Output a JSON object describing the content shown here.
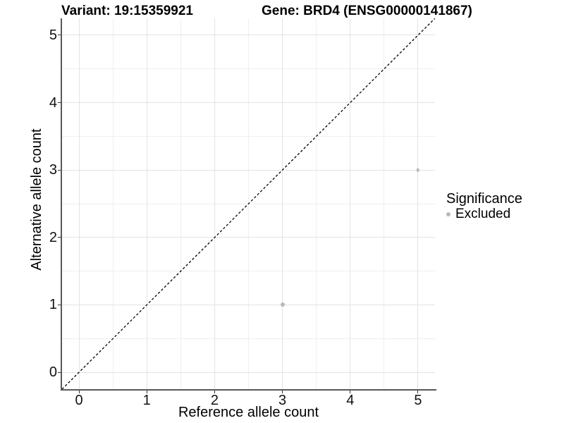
{
  "header": {
    "variant_title": "Variant: 19:15359921",
    "gene_title": "Gene: BRD4 (ENSG00000141867)"
  },
  "axes": {
    "x_label": "Reference allele count",
    "y_label": "Alternative allele count"
  },
  "legend": {
    "title": "Significance",
    "items": [
      {
        "label": "Excluded",
        "color": "#b9b9b9"
      }
    ]
  },
  "colors": {
    "axis_line": "#595959",
    "grid_major": "#e3e3e3",
    "grid_minor": "#efefef",
    "tick_mark": "#333333",
    "identity_line": "#000000",
    "point": "#b9b9b9"
  },
  "chart_data": {
    "type": "scatter",
    "title": "Variant: 19:15359921 | Gene: BRD4 (ENSG00000141867)",
    "xlabel": "Reference allele count",
    "ylabel": "Alternative allele count",
    "xlim": [
      -0.25,
      5.25
    ],
    "ylim": [
      -0.25,
      5.25
    ],
    "x_ticks": [
      0,
      1,
      2,
      3,
      4,
      5
    ],
    "y_ticks": [
      0,
      1,
      2,
      3,
      4,
      5
    ],
    "grid": "major and minor (0.5 steps), light gray on white",
    "legend_position": "right",
    "identity_line": {
      "type": "y=x",
      "style": "dashed",
      "color": "#000000"
    },
    "series": [
      {
        "name": "Excluded",
        "color": "#b9b9b9",
        "points": [
          {
            "x": 3,
            "y": 1,
            "diameter": 6
          },
          {
            "x": 5,
            "y": 3,
            "diameter": 4.5
          }
        ]
      }
    ]
  }
}
